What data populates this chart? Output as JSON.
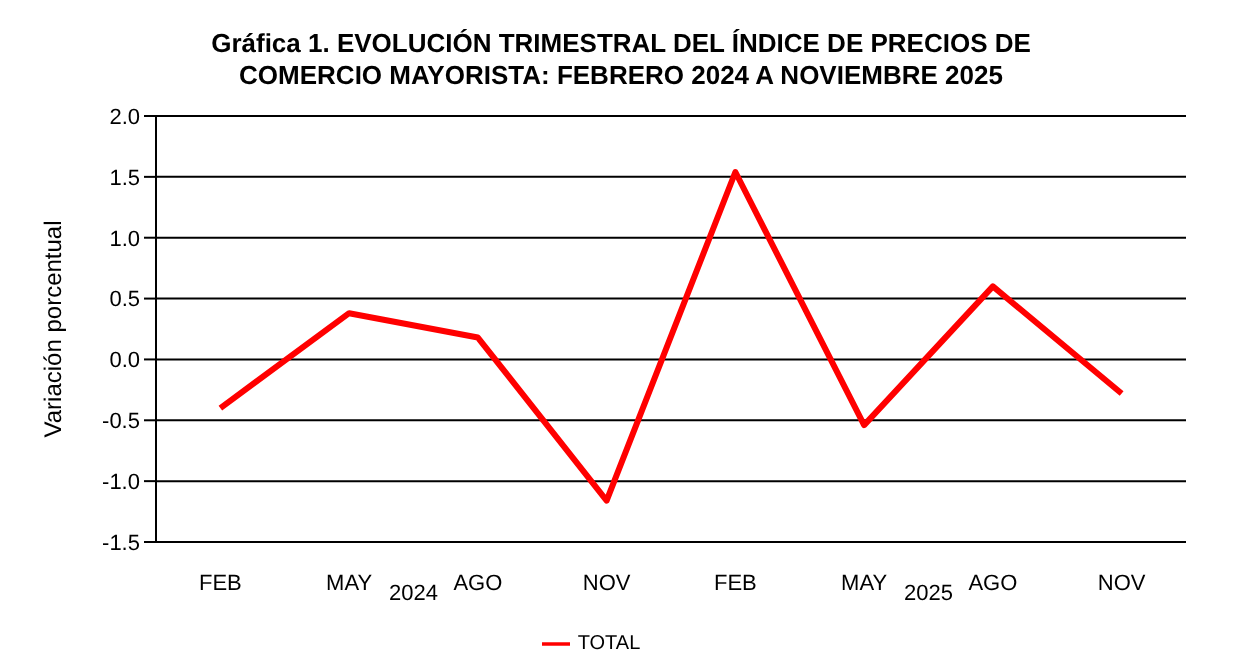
{
  "chart_data": {
    "type": "line",
    "title": "Gráfica 1. EVOLUCIÓN TRIMESTRAL DEL ÍNDICE DE PRECIOS DE COMERCIO MAYORISTA: FEBRERO 2024 A NOVIEMBRE 2025",
    "ylabel": "Variación porcentual",
    "categories": [
      "FEB",
      "MAY",
      "AGO",
      "NOV",
      "FEB",
      "MAY",
      "AGO",
      "NOV"
    ],
    "series": [
      {
        "name": "TOTAL",
        "color": "#ff0000",
        "values": [
          -0.4,
          0.38,
          0.18,
          -1.16,
          1.54,
          -0.54,
          0.6,
          -0.28
        ]
      }
    ],
    "annotations": [
      "2024",
      "2025"
    ],
    "ylim": [
      -1.5,
      2.0
    ],
    "yticks": [
      {
        "value": -1.5,
        "label": "-1.5"
      },
      {
        "value": -1.0,
        "label": "-1.0"
      },
      {
        "value": -0.5,
        "label": "-0.5"
      },
      {
        "value": 0,
        "label": "0.0"
      },
      {
        "value": 0.5,
        "label": "0.5"
      },
      {
        "value": 1.0,
        "label": "1.0"
      },
      {
        "value": 1.5,
        "label": "1.5"
      },
      {
        "value": 2.0,
        "label": "2.0"
      }
    ],
    "grid": "y",
    "legend": "bottom",
    "marker": "none",
    "line_style": "solid"
  }
}
